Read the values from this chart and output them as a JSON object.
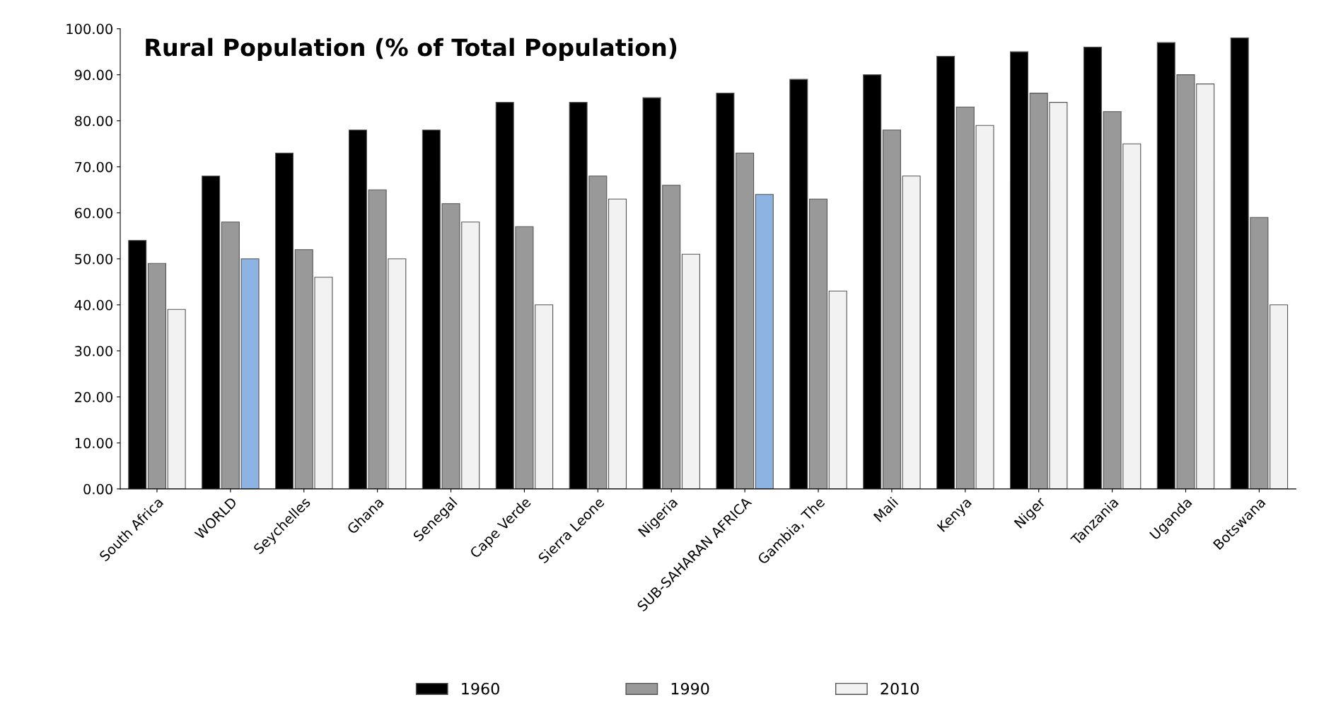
{
  "chart_data": {
    "type": "bar",
    "title": "Rural Population (% of Total Population)",
    "categories": [
      "South Africa",
      "WORLD",
      "Seychelles",
      "Ghana",
      "Senegal",
      "Cape Verde",
      "Sierra Leone",
      "Nigeria",
      "SUB-SAHARAN AFRICA",
      "Gambia, The",
      "Mali",
      "Kenya",
      "Niger",
      "Tanzania",
      "Uganda",
      "Botswana"
    ],
    "series": [
      {
        "name": "1960",
        "color": "#000000",
        "values": [
          54,
          68,
          73,
          78,
          78,
          84,
          84,
          85,
          86,
          89,
          90,
          94,
          95,
          96,
          97,
          98
        ]
      },
      {
        "name": "1990",
        "color": "#999999",
        "values": [
          49,
          58,
          52,
          65,
          62,
          57,
          68,
          66,
          73,
          63,
          78,
          83,
          86,
          82,
          90,
          59
        ]
      },
      {
        "name": "2010",
        "color": "#f2f2f2",
        "colors": [
          "#f2f2f2",
          "#8db3e2",
          "#f2f2f2",
          "#f2f2f2",
          "#f2f2f2",
          "#f2f2f2",
          "#f2f2f2",
          "#f2f2f2",
          "#8db3e2",
          "#f2f2f2",
          "#f2f2f2",
          "#f2f2f2",
          "#f2f2f2",
          "#f2f2f2",
          "#f2f2f2",
          "#f2f2f2"
        ],
        "values": [
          39,
          50,
          46,
          50,
          58,
          40,
          63,
          51,
          64,
          43,
          68,
          79,
          84,
          75,
          88,
          40
        ]
      }
    ],
    "ylim": [
      0,
      100
    ],
    "yticks": [
      {
        "value": 0,
        "label": "0.00"
      },
      {
        "value": 10,
        "label": "10.00"
      },
      {
        "value": 20,
        "label": "20.00"
      },
      {
        "value": 30,
        "label": "30.00"
      },
      {
        "value": 40,
        "label": "40.00"
      },
      {
        "value": 50,
        "label": "50.00"
      },
      {
        "value": 60,
        "label": "60.00"
      },
      {
        "value": 70,
        "label": "70.00"
      },
      {
        "value": 80,
        "label": "80.00"
      },
      {
        "value": 90,
        "label": "90.00"
      },
      {
        "value": 100,
        "label": "100.00"
      }
    ],
    "grid": false,
    "legend": "bottom"
  }
}
